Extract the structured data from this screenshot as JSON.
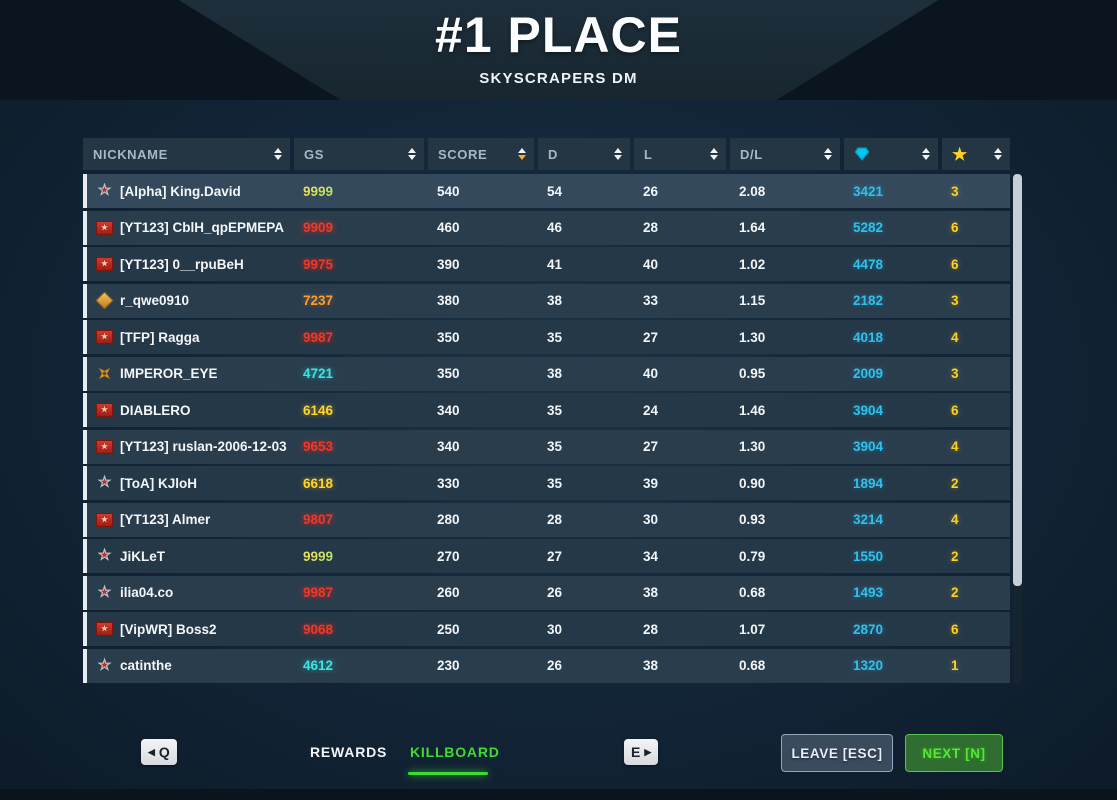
{
  "header": {
    "title": "#1 PLACE",
    "subtitle": "SKYSCRAPERS DM"
  },
  "table": {
    "columns": [
      {
        "key": "nickname",
        "label": "NICKNAME",
        "sorted": "none"
      },
      {
        "key": "gs",
        "label": "GS",
        "sorted": "none"
      },
      {
        "key": "score",
        "label": "SCORE",
        "sorted": "desc"
      },
      {
        "key": "d",
        "label": "D",
        "sorted": "none"
      },
      {
        "key": "l",
        "label": "L",
        "sorted": "none"
      },
      {
        "key": "dl",
        "label": "D/L",
        "sorted": "none"
      },
      {
        "key": "gem",
        "label": "",
        "icon": "gem-icon",
        "sorted": "none"
      },
      {
        "key": "star",
        "label": "",
        "icon": "star-icon",
        "sorted": "none"
      }
    ],
    "rows": [
      {
        "icon": "medal-star",
        "nickname": "[Alpha] King.David",
        "gs": "9999",
        "gs_color": "gradient",
        "score": "540",
        "d": "54",
        "l": "26",
        "dl": "2.08",
        "gem": "3421",
        "star": "3",
        "highlight": true
      },
      {
        "icon": "badge-red",
        "nickname": "[YT123] CblH_qpEPMEPA",
        "gs": "9909",
        "gs_color": "red",
        "score": "460",
        "d": "46",
        "l": "28",
        "dl": "1.64",
        "gem": "5282",
        "star": "6",
        "highlight": false
      },
      {
        "icon": "badge-red",
        "nickname": "[YT123] 0__rpuBeH",
        "gs": "9975",
        "gs_color": "red",
        "score": "390",
        "d": "41",
        "l": "40",
        "dl": "1.02",
        "gem": "4478",
        "star": "6",
        "highlight": false
      },
      {
        "icon": "medal-diamond",
        "nickname": "r_qwe0910",
        "gs": "7237",
        "gs_color": "orange",
        "score": "380",
        "d": "38",
        "l": "33",
        "dl": "1.15",
        "gem": "2182",
        "star": "3",
        "highlight": false
      },
      {
        "icon": "badge-red",
        "nickname": "[TFP] Ragga",
        "gs": "9987",
        "gs_color": "red",
        "score": "350",
        "d": "35",
        "l": "27",
        "dl": "1.30",
        "gem": "4018",
        "star": "4",
        "highlight": false
      },
      {
        "icon": "medal-cross",
        "nickname": "IMPEROR_EYE",
        "gs": "4721",
        "gs_color": "cyan",
        "score": "350",
        "d": "38",
        "l": "40",
        "dl": "0.95",
        "gem": "2009",
        "star": "3",
        "highlight": false
      },
      {
        "icon": "badge-red",
        "nickname": "DIABLERO",
        "gs": "6146",
        "gs_color": "yellow",
        "score": "340",
        "d": "35",
        "l": "24",
        "dl": "1.46",
        "gem": "3904",
        "star": "6",
        "highlight": false
      },
      {
        "icon": "badge-red",
        "nickname": "[YT123] ruslan-2006-12-03",
        "gs": "9653",
        "gs_color": "red",
        "score": "340",
        "d": "35",
        "l": "27",
        "dl": "1.30",
        "gem": "3904",
        "star": "4",
        "highlight": false
      },
      {
        "icon": "medal-star",
        "nickname": "[ToA] KJloH",
        "gs": "6618",
        "gs_color": "yellow",
        "score": "330",
        "d": "35",
        "l": "39",
        "dl": "0.90",
        "gem": "1894",
        "star": "2",
        "highlight": false
      },
      {
        "icon": "badge-red",
        "nickname": "[YT123] Almer",
        "gs": "9807",
        "gs_color": "red",
        "score": "280",
        "d": "28",
        "l": "30",
        "dl": "0.93",
        "gem": "3214",
        "star": "4",
        "highlight": false
      },
      {
        "icon": "medal-star",
        "nickname": "JiKLeT",
        "gs": "9999",
        "gs_color": "gradient",
        "score": "270",
        "d": "27",
        "l": "34",
        "dl": "0.79",
        "gem": "1550",
        "star": "2",
        "highlight": false
      },
      {
        "icon": "medal-star",
        "nickname": "ilia04.co",
        "gs": "9987",
        "gs_color": "red",
        "score": "260",
        "d": "26",
        "l": "38",
        "dl": "0.68",
        "gem": "1493",
        "star": "2",
        "highlight": false
      },
      {
        "icon": "badge-red",
        "nickname": "[VipWR] Boss2",
        "gs": "9068",
        "gs_color": "red",
        "score": "250",
        "d": "30",
        "l": "28",
        "dl": "1.07",
        "gem": "2870",
        "star": "6",
        "highlight": false
      },
      {
        "icon": "medal-star",
        "nickname": "catinthe",
        "gs": "4612",
        "gs_color": "cyan",
        "score": "230",
        "d": "26",
        "l": "38",
        "dl": "0.68",
        "gem": "1320",
        "star": "1",
        "highlight": false
      }
    ]
  },
  "footer": {
    "key_prev": "Q",
    "key_next": "E",
    "tabs": [
      {
        "label": "REWARDS",
        "active": false
      },
      {
        "label": "KILLBOARD",
        "active": true
      }
    ],
    "leave_label": "LEAVE [ESC]",
    "next_label": "NEXT [N]"
  },
  "colors": {
    "accent_green": "#3fdc30",
    "gem_cyan": "#00c8f2",
    "star_yellow": "#ffd21f",
    "gs_red": "#f0372a",
    "gs_orange": "#ff9d2e",
    "gs_cyan": "#3ae6e2",
    "gs_yellow": "#ffd529",
    "sort_active": "#f0b429",
    "row_highlight": "#35495c"
  }
}
